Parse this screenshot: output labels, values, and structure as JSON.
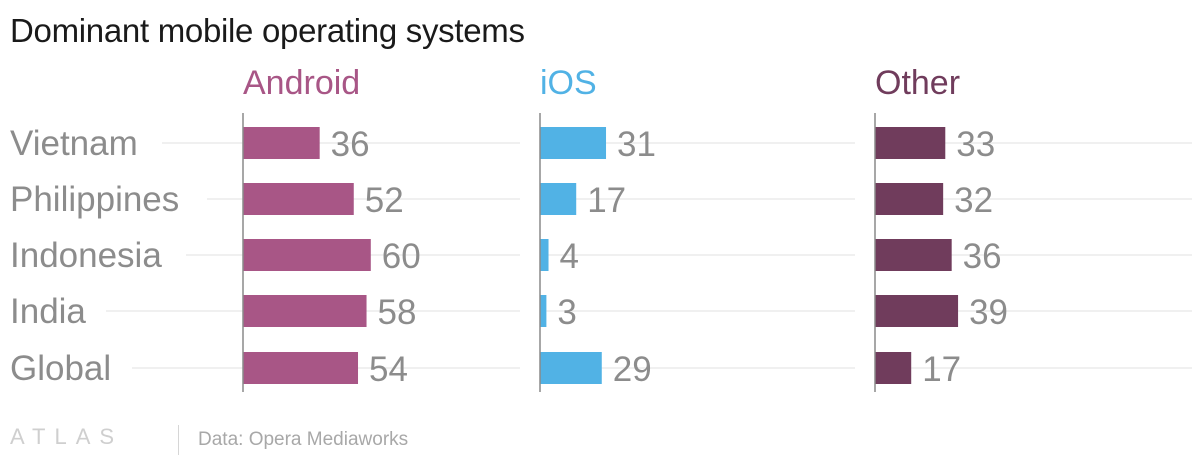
{
  "chart_data": {
    "type": "bar",
    "title": "Dominant mobile operating systems",
    "categories": [
      "Vietnam",
      "Philippines",
      "Indonesia",
      "India",
      "Global"
    ],
    "series": [
      {
        "name": "Android",
        "values": [
          36,
          52,
          60,
          58,
          54
        ],
        "color": "#a85686"
      },
      {
        "name": "iOS",
        "values": [
          31,
          17,
          4,
          3,
          29
        ],
        "color": "#51b2e5"
      },
      {
        "name": "Other",
        "values": [
          33,
          32,
          36,
          39,
          17
        ],
        "color": "#703c5c"
      }
    ],
    "xlabel": "",
    "ylabel": "",
    "grid": true,
    "legend": "column headers above each panel"
  },
  "footer": {
    "brand": "ATLAS",
    "source": "Data: Opera Mediaworks"
  }
}
